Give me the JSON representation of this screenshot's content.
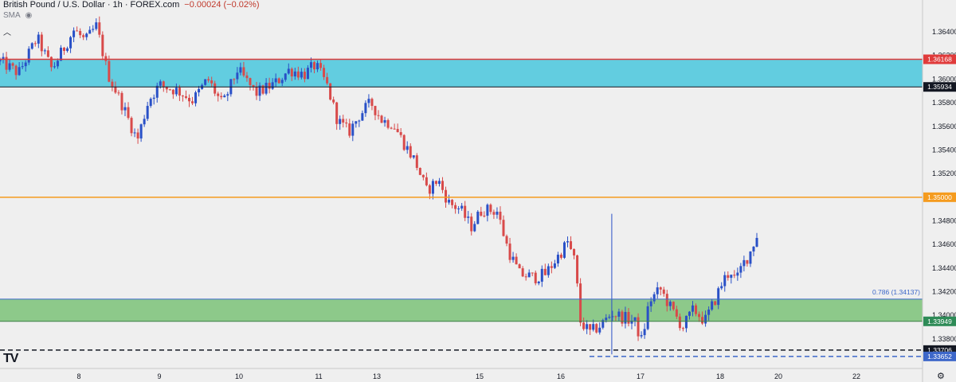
{
  "header": {
    "title": "British Pound / U.S. Dollar · 1h · FOREX.com",
    "change": "−0.00024 (−0.02%)"
  },
  "indicator": {
    "label": "SMA"
  },
  "logo": "TV",
  "colors": {
    "background": "#efefef",
    "up": "#2950c7",
    "down": "#d84a4a",
    "resistance_zone": "#62cde0",
    "support_zone": "#8dc98a",
    "red_line": "#e03b3b",
    "orange_line": "#f59b1e",
    "fib_line": "#3d67c9"
  },
  "chart_data": {
    "type": "candlestick",
    "title": "British Pound / U.S. Dollar · 1h · FOREX.com",
    "ylim": [
      1.3355,
      1.3667
    ],
    "y_ticks": [
      1.364,
      1.362,
      1.36,
      1.358,
      1.356,
      1.354,
      1.352,
      1.35,
      1.348,
      1.346,
      1.344,
      1.342,
      1.34,
      1.338
    ],
    "x_ticks": [
      "8",
      "9",
      "10",
      "11",
      "13",
      "15",
      "16",
      "17",
      "18",
      "20",
      "22"
    ],
    "zones": [
      {
        "name": "resistance",
        "from": 1.35934,
        "to": 1.36168
      },
      {
        "name": "support",
        "from": 1.33949,
        "to": 1.34137
      }
    ],
    "levels": [
      {
        "name": "red",
        "value": 1.36168,
        "label": "1.36168",
        "style": "solid"
      },
      {
        "name": "black",
        "value": 1.35934,
        "label": "1.35934",
        "style": "solid"
      },
      {
        "name": "orange",
        "value": 1.35,
        "label": "1.35000",
        "style": "solid"
      },
      {
        "name": "fib",
        "value": 1.34137,
        "label": "1.34137",
        "style": "solid",
        "annotation": "0.786 (1.34137)"
      },
      {
        "name": "green-bottom",
        "value": 1.33949,
        "label": "1.33949",
        "style": "solid"
      },
      {
        "name": "black-dashed",
        "value": 1.33706,
        "label": "1.33706",
        "style": "dashed"
      },
      {
        "name": "blue-dashed",
        "value": 1.33652,
        "label": "1.33652",
        "style": "dashed"
      }
    ],
    "path": [
      [
        0.0,
        1.3615
      ],
      [
        0.025,
        1.3605
      ],
      [
        0.05,
        1.3635
      ],
      [
        0.07,
        1.3608
      ],
      [
        0.085,
        1.3625
      ],
      [
        0.1,
        1.3642
      ],
      [
        0.115,
        1.3632
      ],
      [
        0.13,
        1.3645
      ],
      [
        0.145,
        1.3605
      ],
      [
        0.165,
        1.3578
      ],
      [
        0.185,
        1.3548
      ],
      [
        0.2,
        1.3582
      ],
      [
        0.215,
        1.3595
      ],
      [
        0.24,
        1.359
      ],
      [
        0.26,
        1.3582
      ],
      [
        0.28,
        1.36
      ],
      [
        0.3,
        1.3578
      ],
      [
        0.32,
        1.3608
      ],
      [
        0.345,
        1.3588
      ],
      [
        0.37,
        1.3596
      ],
      [
        0.39,
        1.3608
      ],
      [
        0.41,
        1.3604
      ],
      [
        0.425,
        1.3612
      ],
      [
        0.44,
        1.3596
      ],
      [
        0.455,
        1.3565
      ],
      [
        0.47,
        1.3555
      ],
      [
        0.485,
        1.357
      ],
      [
        0.5,
        1.358
      ],
      [
        0.515,
        1.3565
      ],
      [
        0.53,
        1.3562
      ],
      [
        0.545,
        1.3545
      ],
      [
        0.56,
        1.353
      ],
      [
        0.575,
        1.3505
      ],
      [
        0.59,
        1.3515
      ],
      [
        0.605,
        1.3495
      ],
      [
        0.62,
        1.349
      ],
      [
        0.635,
        1.3475
      ],
      [
        0.65,
        1.349
      ],
      [
        0.67,
        1.3488
      ],
      [
        0.685,
        1.3455
      ],
      [
        0.7,
        1.3435
      ],
      [
        0.72,
        1.3432
      ],
      [
        0.735,
        1.3435
      ],
      [
        0.75,
        1.3448
      ],
      [
        0.765,
        1.3462
      ],
      [
        0.775,
        1.3445
      ],
      [
        0.782,
        1.3395
      ],
      [
        0.795,
        1.3385
      ],
      [
        0.81,
        1.3392
      ],
      [
        0.825,
        1.3402
      ],
      [
        0.84,
        1.3398
      ],
      [
        0.855,
        1.3395
      ],
      [
        0.865,
        1.3378
      ],
      [
        0.875,
        1.3412
      ],
      [
        0.89,
        1.3422
      ],
      [
        0.905,
        1.3405
      ],
      [
        0.92,
        1.339
      ],
      [
        0.935,
        1.3405
      ],
      [
        0.95,
        1.3395
      ],
      [
        0.965,
        1.3415
      ],
      [
        0.975,
        1.343
      ],
      [
        0.985,
        1.3438
      ],
      [
        0.992,
        1.3428
      ],
      [
        1.0,
        1.3442
      ],
      [
        1.01,
        1.3452
      ],
      [
        1.02,
        1.3468
      ]
    ],
    "spikes": [
      {
        "t": 0.8245,
        "high": 1.3486,
        "low": 1.3367
      }
    ]
  }
}
